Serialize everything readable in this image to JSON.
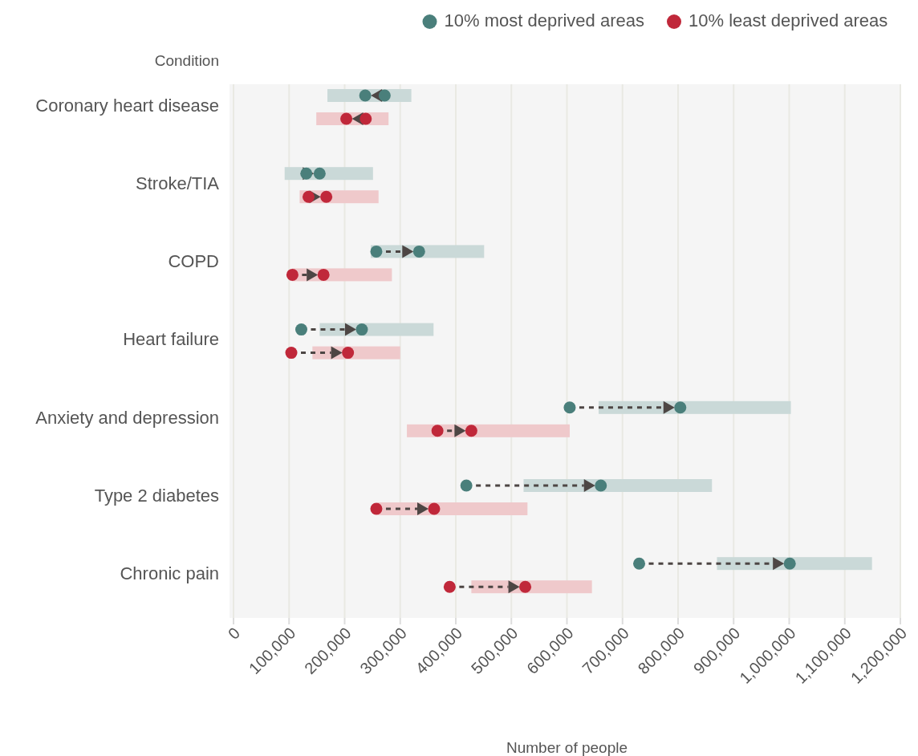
{
  "chart_data": {
    "type": "bar",
    "orientation": "horizontal",
    "categories": [
      "Coronary heart disease",
      "Stroke/TIA",
      "COPD",
      "Heart failure",
      "Anxiety and depression",
      "Type 2 diabetes",
      "Chronic pain"
    ],
    "ylabel": "Condition",
    "xlabel": "Number of people",
    "xlim": [
      0,
      1200000
    ],
    "xticks": [
      {
        "value": 0,
        "label": "0"
      },
      {
        "value": 100000,
        "label": "100,000"
      },
      {
        "value": 200000,
        "label": "200,000"
      },
      {
        "value": 300000,
        "label": "300,000"
      },
      {
        "value": 400000,
        "label": "400,000"
      },
      {
        "value": 500000,
        "label": "500,000"
      },
      {
        "value": 600000,
        "label": "600,000"
      },
      {
        "value": 700000,
        "label": "700,000"
      },
      {
        "value": 800000,
        "label": "800,000"
      },
      {
        "value": 900000,
        "label": "900,000"
      },
      {
        "value": 1000000,
        "label": "1,000,000"
      },
      {
        "value": 1100000,
        "label": "1,100,000"
      },
      {
        "value": 1200000,
        "label": "1,200,000"
      }
    ],
    "grid": "x",
    "legend": "top right",
    "series": [
      {
        "color": "#cad9d8",
        "base": [
          169000,
          92000,
          247000,
          155000,
          657000,
          522000,
          870000
        ],
        "values": [
          151000,
          159000,
          204000,
          205000,
          346000,
          339000,
          279000
        ]
      },
      {
        "color": "#efc9cb",
        "base": [
          149000,
          119000,
          105000,
          142000,
          312000,
          259000,
          428000
        ],
        "values": [
          130000,
          142000,
          180000,
          158000,
          293000,
          270000,
          217000
        ]
      },
      {
        "type": "scatter",
        "name": "10% most deprived areas",
        "color": "#4a7f7b",
        "values": [
          272000,
          131000,
          257000,
          122000,
          605000,
          419000,
          730000
        ]
      },
      {
        "type": "scatter",
        "color": "#4a7f7b",
        "values": [
          237000,
          155000,
          334000,
          231000,
          804000,
          661000,
          1001000
        ]
      },
      {
        "type": "scatter",
        "name": "10% least deprived areas",
        "color": "#c0283a",
        "values": [
          238000,
          135000,
          106000,
          104000,
          367000,
          257000,
          389000
        ]
      },
      {
        "type": "scatter",
        "color": "#c0283a",
        "values": [
          203000,
          167000,
          162000,
          206000,
          428000,
          361000,
          525000
        ]
      }
    ]
  }
}
